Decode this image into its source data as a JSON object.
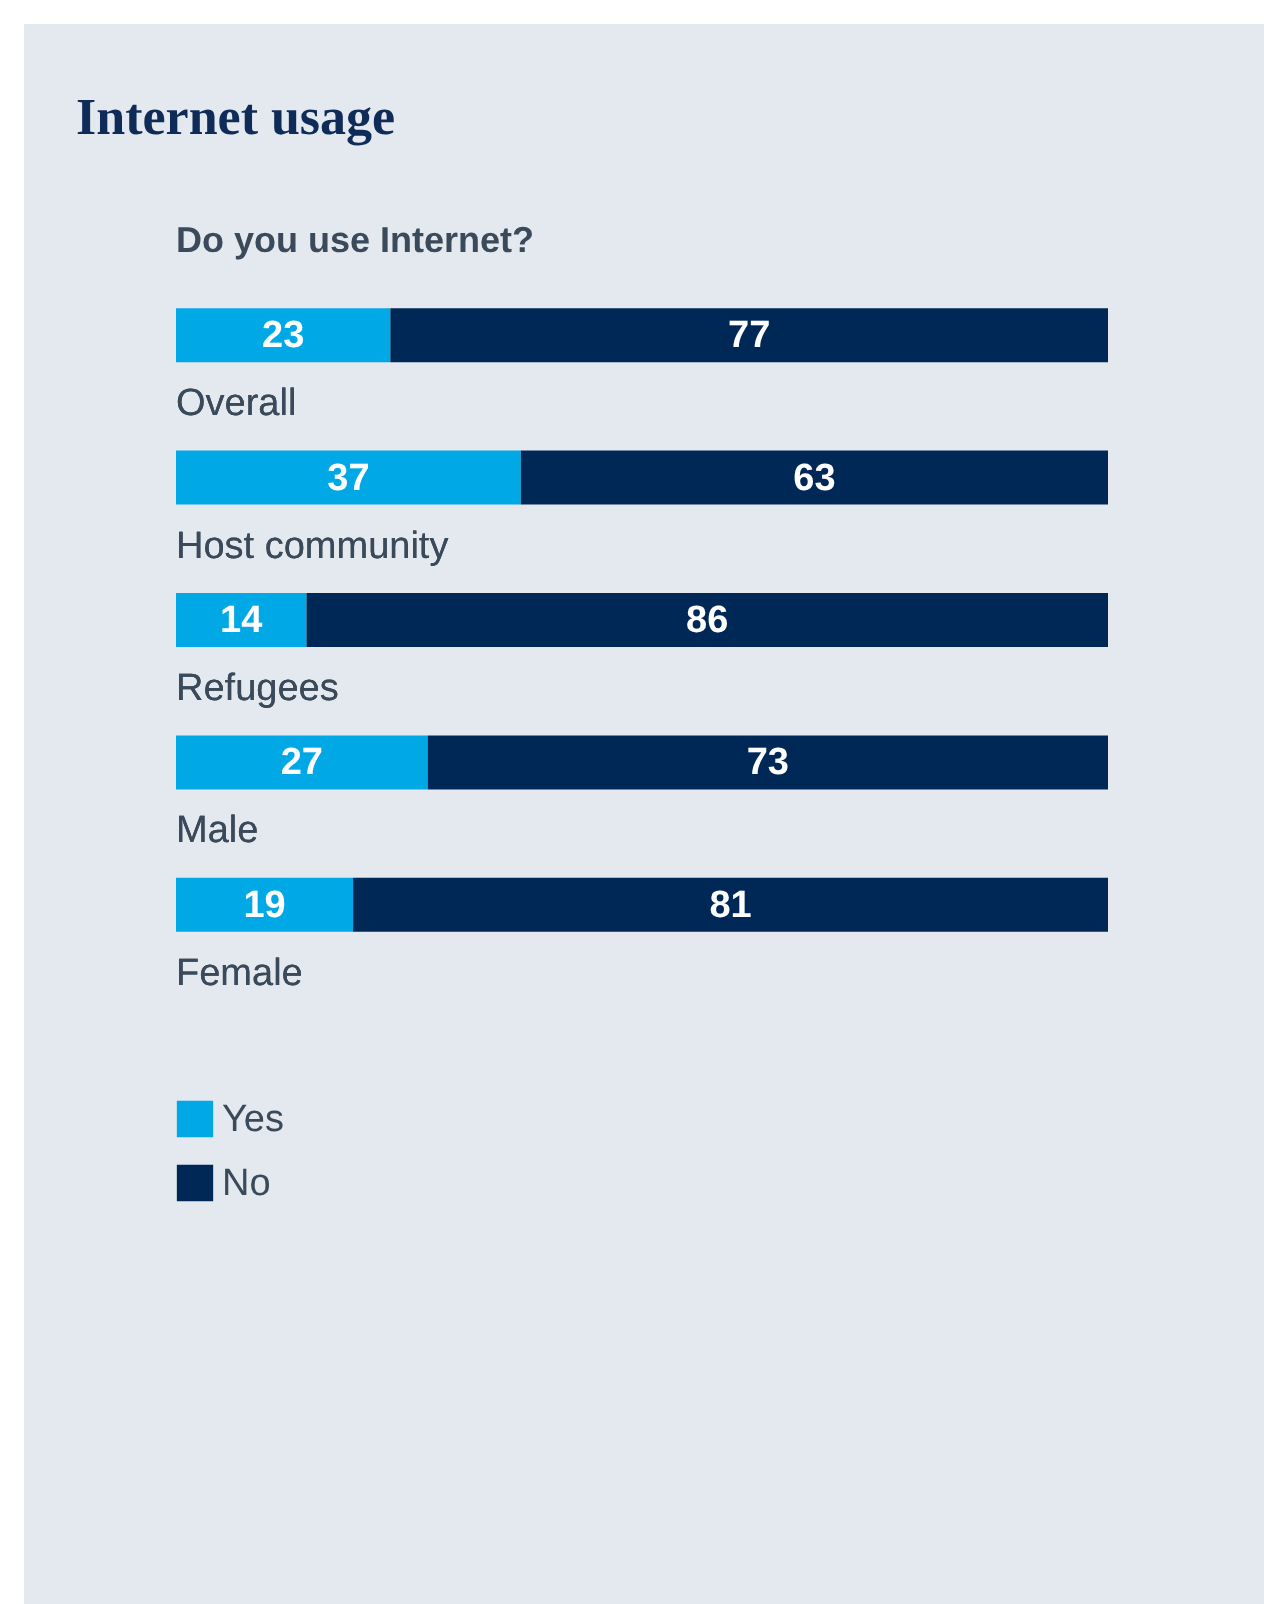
{
  "chart_data": {
    "type": "bar",
    "orientation": "horizontal",
    "stacked": true,
    "title": "Internet usage",
    "subtitle": "Do you use Internet?",
    "categories": [
      "Overall",
      "Host community",
      "Refugees",
      "Male",
      "Female"
    ],
    "series": [
      {
        "name": "Yes",
        "color": "#00a9e5",
        "values": [
          23,
          37,
          14,
          27,
          19
        ]
      },
      {
        "name": "No",
        "color": "#002856",
        "values": [
          77,
          63,
          86,
          73,
          81
        ]
      }
    ],
    "data_labels": true,
    "legend": "bottom left"
  }
}
